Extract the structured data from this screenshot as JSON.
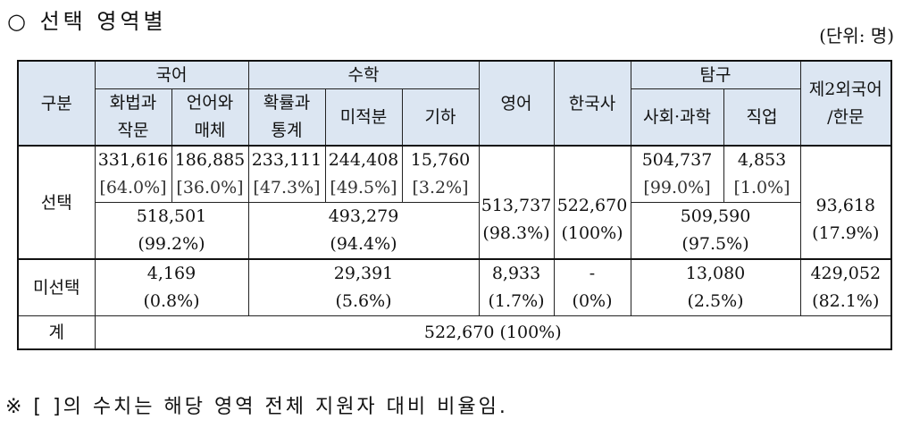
{
  "heading": "○ 선택 영역별",
  "unit": "(단위: 명)",
  "header": {
    "gubun": "구분",
    "korean": "국어",
    "math": "수학",
    "english": "영어",
    "history": "한국사",
    "explore": "탐구",
    "foreign": [
      "제2외국어",
      "/한문"
    ],
    "sub": {
      "k1": [
        "화법과",
        "작문"
      ],
      "k2": [
        "언어와",
        "매체"
      ],
      "m1": [
        "확률과",
        "통계"
      ],
      "m2": "미적분",
      "m3": "기하",
      "e1": "사회·과학",
      "e2": "직업"
    }
  },
  "rows": {
    "select_label": "선택",
    "unselect_label": "미선택",
    "total_label": "계",
    "select_detail": {
      "k1": [
        "331,616",
        "[64.0%]"
      ],
      "k2": [
        "186,885",
        "[36.0%]"
      ],
      "m1": [
        "233,111",
        "[47.3%]"
      ],
      "m2": [
        "244,408",
        "[49.5%]"
      ],
      "m3": [
        "15,760",
        "[3.2%]"
      ],
      "e1": [
        "504,737",
        "[99.0%]"
      ],
      "e2": [
        "4,853",
        "[1.0%]"
      ]
    },
    "select_sum": {
      "korean": [
        "518,501",
        "(99.2%)"
      ],
      "math": [
        "493,279",
        "(94.4%)"
      ],
      "english": [
        "513,737",
        "(98.3%)"
      ],
      "history": [
        "522,670",
        "(100%)"
      ],
      "explore": [
        "509,590",
        "(97.5%)"
      ],
      "foreign": [
        "93,618",
        "(17.9%)"
      ]
    },
    "unselect": {
      "korean": [
        "4,169",
        "(0.8%)"
      ],
      "math": [
        "29,391",
        "(5.6%)"
      ],
      "english": [
        "8,933",
        "(1.7%)"
      ],
      "history": [
        "-",
        "(0%)"
      ],
      "explore": [
        "13,080",
        "(2.5%)"
      ],
      "foreign": [
        "429,052",
        "(82.1%)"
      ]
    },
    "total": "522,670 (100%)"
  },
  "footnote": "※ [ ]의 수치는 해당 영역 전체 지원자 대비 비율임."
}
